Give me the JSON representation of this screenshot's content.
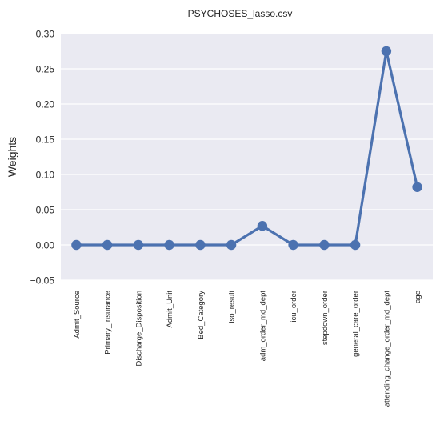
{
  "chart_data": {
    "type": "line",
    "title": "PSYCHOSES_lasso.csv",
    "xlabel": "",
    "ylabel": "Weights",
    "categories": [
      "Admit_Source",
      "Primary_Insurance",
      "Discharge_Disposition",
      "Admit_Unit",
      "Bed_Category",
      "iso_result",
      "adm_order_md_dept",
      "icu_order",
      "stepdown_order",
      "general_care_order",
      "attending_change_order_md_dept",
      "age"
    ],
    "values": [
      0.0,
      0.0,
      0.0,
      0.0,
      0.0,
      0.0,
      0.027,
      0.0,
      0.0,
      0.0,
      0.275,
      0.082
    ],
    "ylim": [
      -0.05,
      0.3
    ],
    "yticks": [
      -0.05,
      0.0,
      0.05,
      0.1,
      0.15,
      0.2,
      0.25,
      0.3
    ],
    "ytick_labels": [
      "−0.05",
      "0.00",
      "0.05",
      "0.10",
      "0.15",
      "0.20",
      "0.25",
      "0.30"
    ],
    "grid": true,
    "colors": {
      "series": "#4c72b0",
      "background": "#eaeaf2",
      "grid": "#ffffff",
      "text": "#262626"
    }
  }
}
